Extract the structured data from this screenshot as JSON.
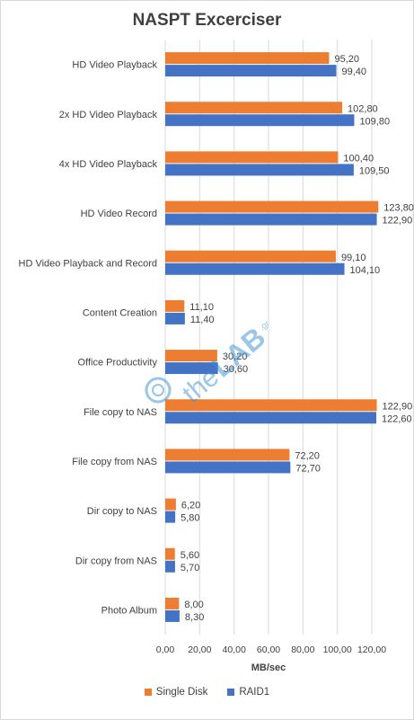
{
  "chart_data": {
    "type": "bar",
    "orientation": "horizontal",
    "title": "NASPT Excerciser",
    "xlabel": "MB/sec",
    "ylabel": "",
    "xlim": [
      0,
      120
    ],
    "x_ticks": [
      "0,00",
      "20,00",
      "40,00",
      "60,00",
      "80,00",
      "100,00",
      "120,00"
    ],
    "grid": true,
    "legend_position": "bottom",
    "categories": [
      "HD Video Playback",
      "2x HD Video Playback",
      "4x HD Video Playback",
      "HD Video Record",
      "HD Video Playback and Record",
      "Content Creation",
      "Office Productivity",
      "File copy to NAS",
      "File copy from NAS",
      "Dir copy to NAS",
      "Dir copy from NAS",
      "Photo Album"
    ],
    "series": [
      {
        "name": "Single Disk",
        "color": "#ed7d31",
        "values": [
          95.2,
          102.8,
          100.4,
          123.8,
          99.1,
          11.1,
          30.2,
          122.9,
          72.2,
          6.2,
          5.6,
          8.0
        ],
        "labels": [
          "95,20",
          "102,80",
          "100,40",
          "123,80",
          "99,10",
          "11,10",
          "30,20",
          "122,90",
          "72,20",
          "6,20",
          "5,60",
          "8,00"
        ]
      },
      {
        "name": "RAID1",
        "color": "#4472c4",
        "values": [
          99.4,
          109.8,
          109.5,
          122.9,
          104.1,
          11.4,
          30.6,
          122.6,
          72.7,
          5.8,
          5.7,
          8.3
        ],
        "labels": [
          "99,40",
          "109,80",
          "109,50",
          "122,90",
          "104,10",
          "11,40",
          "30,60",
          "122,60",
          "72,70",
          "5,80",
          "5,70",
          "8,30"
        ]
      }
    ]
  },
  "watermark": {
    "text_1": "the",
    "text_2": "LAB",
    "text_3": ".gr",
    "color": "#3a8fd0"
  }
}
